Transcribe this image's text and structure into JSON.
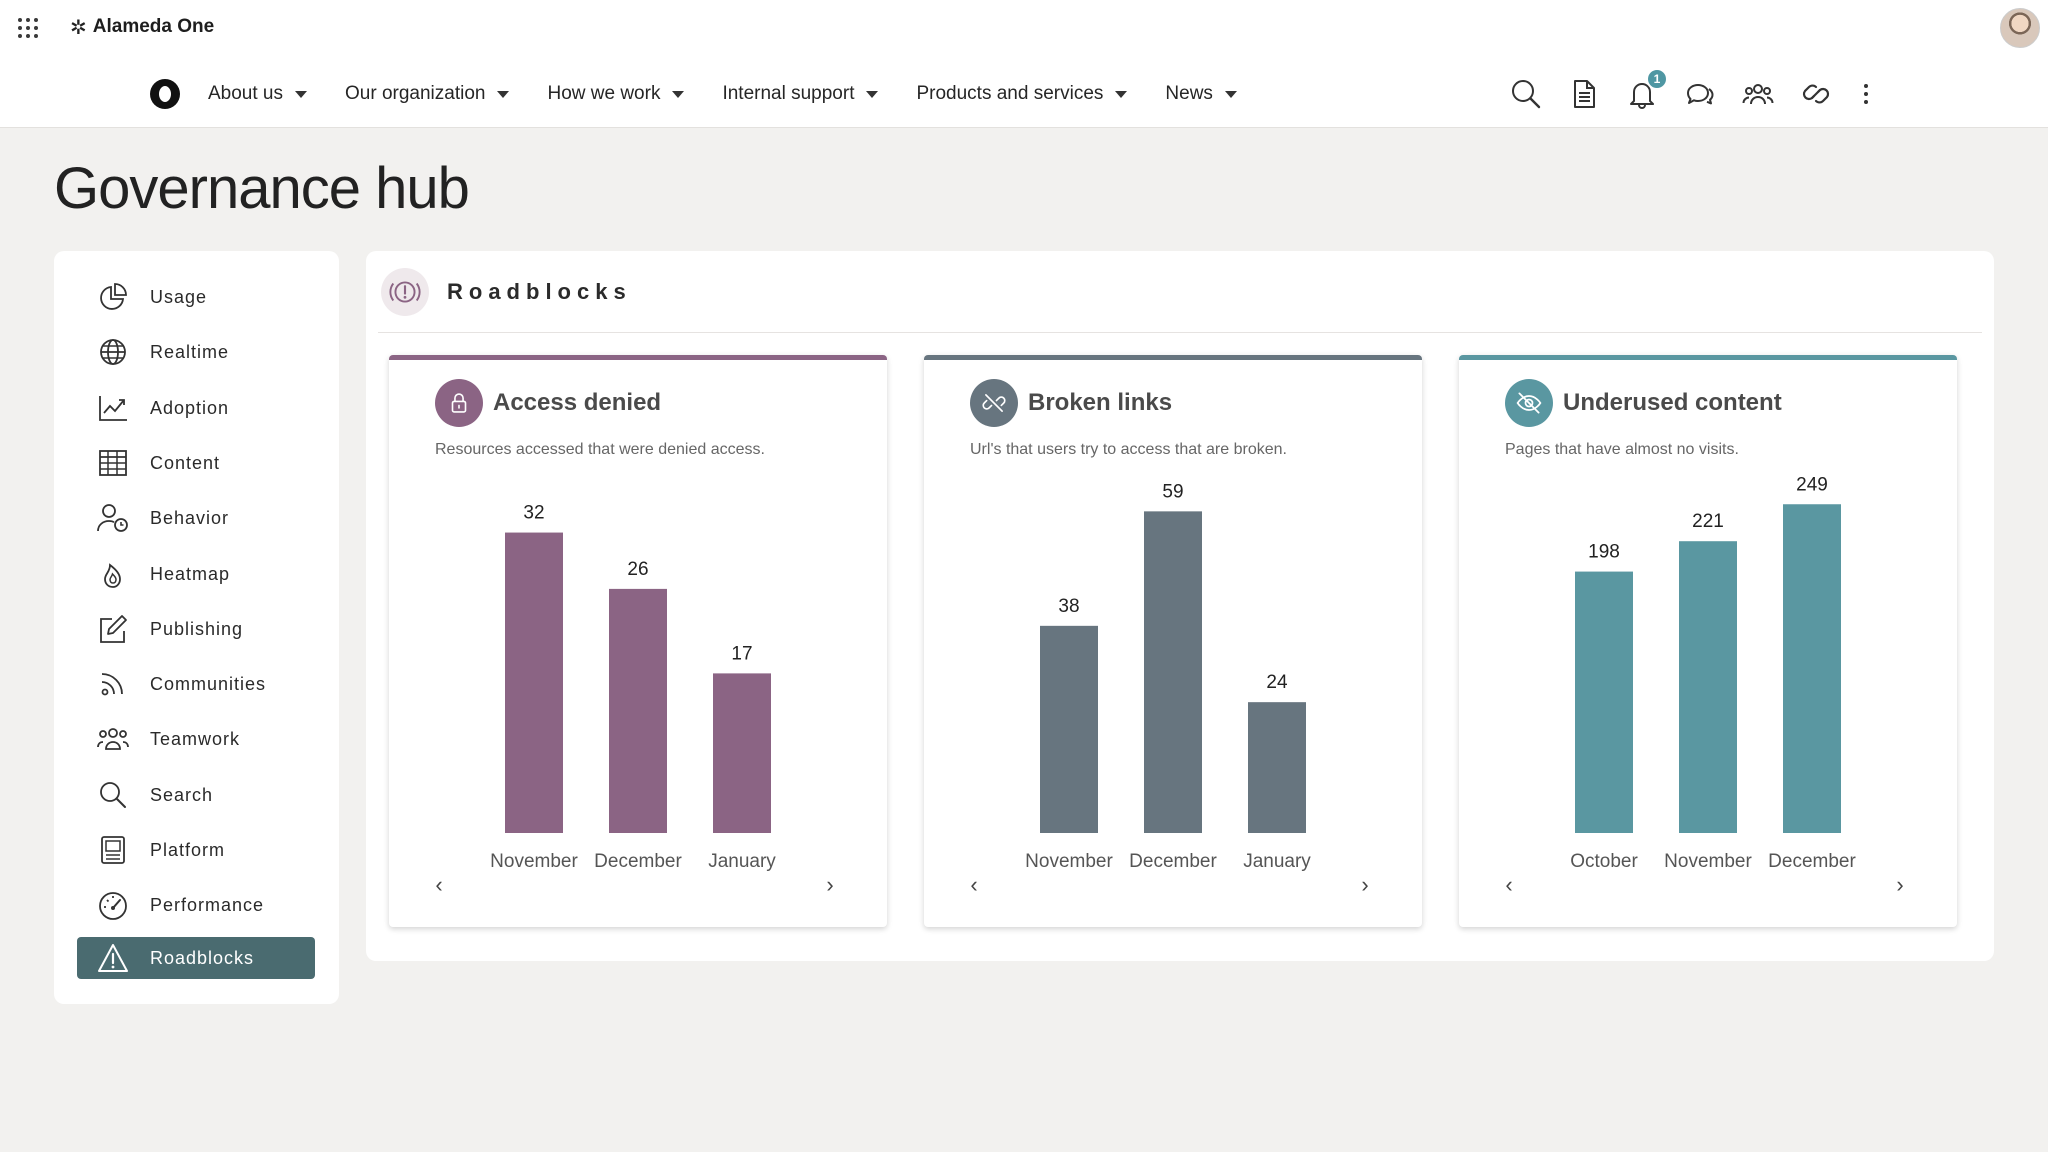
{
  "app": {
    "name": "Alameda One"
  },
  "nav": {
    "items": [
      {
        "label": "About us"
      },
      {
        "label": "Our organization"
      },
      {
        "label": "How we work"
      },
      {
        "label": "Internal support"
      },
      {
        "label": "Products and services"
      },
      {
        "label": "News"
      }
    ]
  },
  "tools": {
    "notifications_count": "1"
  },
  "page": {
    "title": "Governance hub"
  },
  "sidebar": {
    "items": [
      {
        "label": "Usage",
        "icon": "pie-chart-icon"
      },
      {
        "label": "Realtime",
        "icon": "globe-icon"
      },
      {
        "label": "Adoption",
        "icon": "trend-chart-icon"
      },
      {
        "label": "Content",
        "icon": "table-icon"
      },
      {
        "label": "Behavior",
        "icon": "user-clock-icon"
      },
      {
        "label": "Heatmap",
        "icon": "flame-icon"
      },
      {
        "label": "Publishing",
        "icon": "edit-icon"
      },
      {
        "label": "Communities",
        "icon": "rss-icon"
      },
      {
        "label": "Teamwork",
        "icon": "team-icon"
      },
      {
        "label": "Search",
        "icon": "search-icon"
      },
      {
        "label": "Platform",
        "icon": "platform-icon"
      },
      {
        "label": "Performance",
        "icon": "gauge-icon"
      },
      {
        "label": "Roadblocks",
        "icon": "warning-icon",
        "active": true
      }
    ]
  },
  "panel": {
    "title": "Roadblocks"
  },
  "colors": {
    "access": "#8b6484",
    "broken": "#67757f",
    "underused": "#5a97a1",
    "active_nav": "#4a6b70"
  },
  "cards": [
    {
      "title": "Access denied",
      "description": "Resources accessed that were denied access.",
      "icon": "lock-icon"
    },
    {
      "title": "Broken links",
      "description": "Url's that users try to access that are broken.",
      "icon": "broken-link-icon"
    },
    {
      "title": "Underused content",
      "description": "Pages that have almost no visits.",
      "icon": "eye-slash-icon"
    }
  ],
  "chart_data": [
    {
      "type": "bar",
      "categories": [
        "November",
        "December",
        "January"
      ],
      "values": [
        32,
        26,
        17
      ],
      "ylim": [
        0,
        36
      ],
      "title": "",
      "xlabel": "",
      "ylabel": ""
    },
    {
      "type": "bar",
      "categories": [
        "November",
        "December",
        "January"
      ],
      "values": [
        38,
        59,
        24
      ],
      "ylim": [
        0,
        62
      ],
      "title": "",
      "xlabel": "",
      "ylabel": ""
    },
    {
      "type": "bar",
      "categories": [
        "October",
        "November",
        "December"
      ],
      "values": [
        198,
        221,
        249
      ],
      "ylim": [
        0,
        256
      ],
      "title": "",
      "xlabel": "",
      "ylabel": ""
    }
  ]
}
